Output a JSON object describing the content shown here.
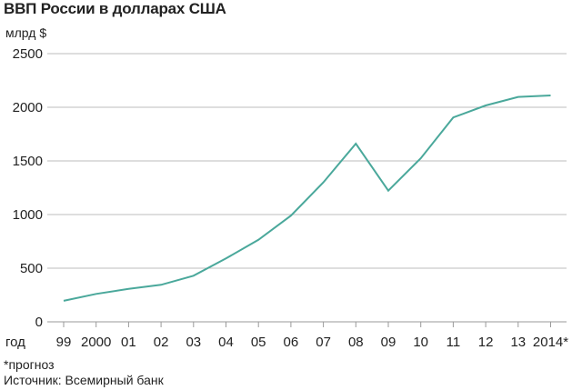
{
  "chart_data": {
    "type": "line",
    "title": "ВВП России в долларах США",
    "ylabel": "млрд $",
    "xlabel": "год",
    "categories": [
      "99",
      "2000",
      "01",
      "02",
      "03",
      "04",
      "05",
      "06",
      "07",
      "08",
      "09",
      "10",
      "11",
      "12",
      "13",
      "2014*"
    ],
    "series": [
      {
        "values": [
          196,
          260,
          307,
          345,
          430,
          591,
          764,
          990,
          1300,
          1661,
          1223,
          1525,
          1905,
          2017,
          2097,
          2110
        ]
      }
    ],
    "ylim": [
      0,
      2500
    ],
    "yticks": [
      0,
      500,
      1000,
      1500,
      2000,
      2500
    ],
    "grid": true,
    "line_color": "#4aa89b"
  },
  "footnote": "*прогноз",
  "source": "Источник: Всемирный банк"
}
